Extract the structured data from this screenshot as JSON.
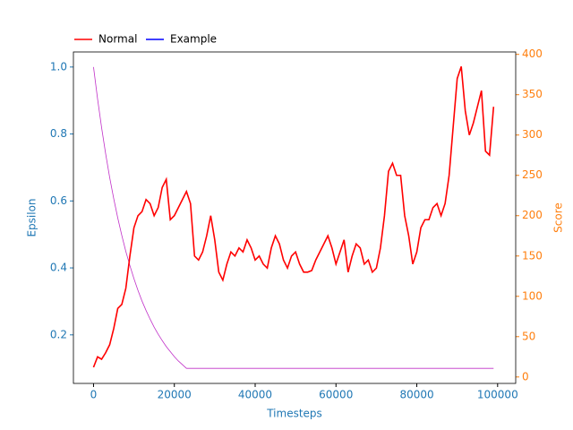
{
  "chart_data": {
    "type": "line",
    "xlabel": "Timesteps",
    "ylabel": "Epsilon",
    "y2label": "Score",
    "legend_loc": "upper left",
    "legend": [
      {
        "name": "Normal",
        "color": "#ff0000"
      },
      {
        "name": "Example",
        "color": "#0000ff"
      }
    ],
    "x": [
      0,
      1000,
      2000,
      3000,
      4000,
      5000,
      6000,
      7000,
      8000,
      9000,
      10000,
      11000,
      12000,
      13000,
      14000,
      15000,
      16000,
      17000,
      18000,
      19000,
      20000,
      21000,
      22000,
      23000,
      24000,
      25000,
      26000,
      27000,
      28000,
      29000,
      30000,
      31000,
      32000,
      33000,
      34000,
      35000,
      36000,
      37000,
      38000,
      39000,
      40000,
      41000,
      42000,
      43000,
      44000,
      45000,
      46000,
      47000,
      48000,
      49000,
      50000,
      51000,
      52000,
      53000,
      54000,
      55000,
      56000,
      57000,
      58000,
      59000,
      60000,
      61000,
      62000,
      63000,
      64000,
      65000,
      66000,
      67000,
      68000,
      69000,
      70000,
      71000,
      72000,
      73000,
      74000,
      75000,
      76000,
      77000,
      78000,
      79000,
      80000,
      81000,
      82000,
      83000,
      84000,
      85000,
      86000,
      87000,
      88000,
      89000,
      90000,
      91000,
      92000,
      93000,
      94000,
      95000,
      96000,
      97000,
      98000,
      99000
    ],
    "series": [
      {
        "color": "#c030c8",
        "axis": "y",
        "values": [
          1,
          0.905,
          0.819,
          0.741,
          0.67,
          0.607,
          0.549,
          0.497,
          0.449,
          0.407,
          0.368,
          0.333,
          0.301,
          0.273,
          0.247,
          0.223,
          0.202,
          0.183,
          0.165,
          0.15,
          0.135,
          0.122,
          0.111,
          0.1,
          0.1,
          0.1,
          0.1,
          0.1,
          0.1,
          0.1,
          0.1,
          0.1,
          0.1,
          0.1,
          0.1,
          0.1,
          0.1,
          0.1,
          0.1,
          0.1,
          0.1,
          0.1,
          0.1,
          0.1,
          0.1,
          0.1,
          0.1,
          0.1,
          0.1,
          0.1,
          0.1,
          0.1,
          0.1,
          0.1,
          0.1,
          0.1,
          0.1,
          0.1,
          0.1,
          0.1,
          0.1,
          0.1,
          0.1,
          0.1,
          0.1,
          0.1,
          0.1,
          0.1,
          0.1,
          0.1,
          0.1,
          0.1,
          0.1,
          0.1,
          0.1,
          0.1,
          0.1,
          0.1,
          0.1,
          0.1,
          0.1,
          0.1,
          0.1,
          0.1,
          0.1,
          0.1,
          0.1,
          0.1,
          0.1,
          0.1,
          0.1,
          0.1,
          0.1,
          0.1,
          0.1,
          0.1,
          0.1,
          0.1,
          0.1,
          0.1
        ]
      },
      {
        "color": "#ff0000",
        "axis": "y2",
        "values": [
          12,
          25,
          22,
          30,
          40,
          60,
          85,
          90,
          110,
          150,
          185,
          200,
          205,
          220,
          215,
          200,
          210,
          235,
          245,
          195,
          200,
          210,
          220,
          230,
          215,
          150,
          145,
          155,
          175,
          200,
          170,
          130,
          120,
          140,
          155,
          150,
          160,
          155,
          170,
          160,
          145,
          150,
          140,
          135,
          160,
          175,
          165,
          145,
          135,
          150,
          155,
          140,
          130,
          130,
          132,
          145,
          155,
          165,
          175,
          160,
          140,
          155,
          170,
          130,
          150,
          165,
          160,
          140,
          145,
          130,
          135,
          160,
          200,
          255,
          265,
          250,
          250,
          200,
          175,
          140,
          155,
          185,
          195,
          195,
          210,
          215,
          200,
          215,
          250,
          310,
          370,
          385,
          330,
          300,
          315,
          335,
          355,
          280,
          275,
          335
        ]
      }
    ],
    "xlim": [
      -4975,
      104475
    ],
    "xticks": [
      0,
      20000,
      40000,
      60000,
      80000,
      100000
    ],
    "ylim": [
      0.055,
      1.045
    ],
    "yticks": [
      0.2,
      0.4,
      0.6,
      0.8,
      {
        "value": 1,
        "label": "1.0"
      }
    ],
    "y2lim": [
      -8,
      403
    ],
    "y2ticks": [
      0,
      50,
      100,
      150,
      200,
      250,
      300,
      350,
      400
    ],
    "ycolor": "#1f77b4",
    "y2color": "#ff7f0e"
  }
}
